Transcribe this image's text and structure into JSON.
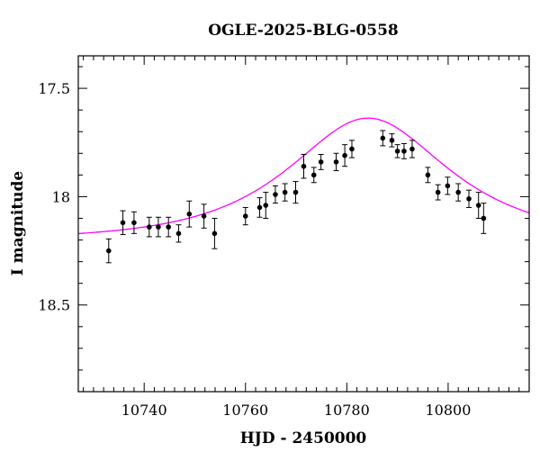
{
  "chart_data": {
    "type": "scatter",
    "title": "OGLE-2025-BLG-0558",
    "xlabel": "HJD - 2450000",
    "ylabel": "I magnitude",
    "xlim": [
      10727,
      10816
    ],
    "ylim": [
      18.9,
      17.35
    ],
    "y_inverted": true,
    "grid": false,
    "x_ticks": [
      {
        "value": 10740,
        "label": "10740"
      },
      {
        "value": 10760,
        "label": "10760"
      },
      {
        "value": 10780,
        "label": "10780"
      },
      {
        "value": 10800,
        "label": "10800"
      }
    ],
    "y_ticks": [
      {
        "value": 17.5,
        "label": "17.5"
      },
      {
        "value": 18.0,
        "label": "18"
      },
      {
        "value": 18.5,
        "label": "18.5"
      }
    ],
    "model_color": "#ff00ff",
    "point_color": "#000000",
    "model": {
      "baseline_mag": 18.2,
      "t0": 10784.2,
      "u0": 0.7,
      "tE": 23
    },
    "series": [
      {
        "x": [
          10733.0,
          10735.8,
          10738.0,
          10741.0,
          10742.8,
          10744.8,
          10746.8,
          10748.9,
          10751.8,
          10753.9,
          10760.0,
          10762.8,
          10764.0,
          10765.9,
          10767.8,
          10769.9,
          10771.5,
          10773.5,
          10774.9,
          10777.9,
          10779.6,
          10781.0,
          10787.1,
          10788.9,
          10790.0,
          10791.3,
          10792.9,
          10796.0,
          10798.0,
          10799.9,
          10802.0,
          10804.1,
          10806.0,
          10807.0
        ],
        "y": [
          18.25,
          18.12,
          18.12,
          18.14,
          18.14,
          18.14,
          18.17,
          18.08,
          18.09,
          18.17,
          18.09,
          18.05,
          18.04,
          17.99,
          17.98,
          17.98,
          17.86,
          17.9,
          17.84,
          17.84,
          17.81,
          17.78,
          17.73,
          17.74,
          17.79,
          17.79,
          17.78,
          17.9,
          17.98,
          17.95,
          17.98,
          18.01,
          18.04,
          18.1
        ],
        "err": [
          0.055,
          0.055,
          0.05,
          0.045,
          0.045,
          0.045,
          0.04,
          0.06,
          0.055,
          0.07,
          0.04,
          0.045,
          0.06,
          0.04,
          0.04,
          0.05,
          0.055,
          0.035,
          0.035,
          0.04,
          0.05,
          0.04,
          0.035,
          0.03,
          0.03,
          0.035,
          0.04,
          0.035,
          0.035,
          0.04,
          0.04,
          0.04,
          0.06,
          0.07
        ]
      }
    ]
  }
}
